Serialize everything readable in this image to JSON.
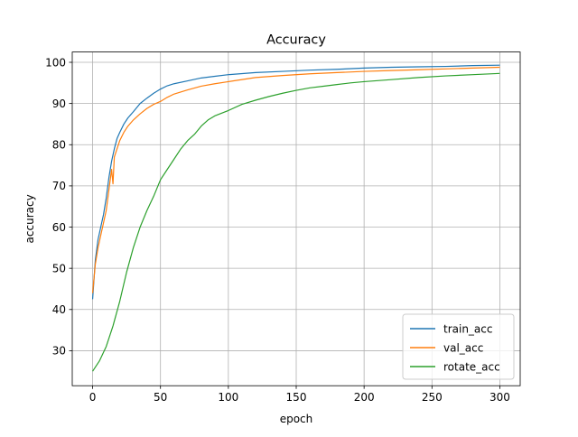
{
  "chart_data": {
    "type": "line",
    "title": "Accuracy",
    "xlabel": "epoch",
    "ylabel": "accuracy",
    "xlim": [
      -15,
      315
    ],
    "ylim": [
      21.5,
      102.5
    ],
    "xticks": [
      0,
      50,
      100,
      150,
      200,
      250,
      300
    ],
    "yticks": [
      30,
      40,
      50,
      60,
      70,
      80,
      90,
      100
    ],
    "grid": true,
    "legend_position": "lower right",
    "series": [
      {
        "name": "train_acc",
        "color": "#1f77b4",
        "points": [
          [
            0,
            42.5
          ],
          [
            2,
            52
          ],
          [
            4,
            57
          ],
          [
            6,
            60
          ],
          [
            8,
            63
          ],
          [
            10,
            67
          ],
          [
            12,
            72
          ],
          [
            14,
            76
          ],
          [
            16,
            79
          ],
          [
            18,
            81.5
          ],
          [
            20,
            83
          ],
          [
            23,
            85
          ],
          [
            26,
            86.5
          ],
          [
            30,
            88
          ],
          [
            35,
            90
          ],
          [
            40,
            91.3
          ],
          [
            45,
            92.5
          ],
          [
            50,
            93.5
          ],
          [
            55,
            94.3
          ],
          [
            60,
            94.8
          ],
          [
            70,
            95.5
          ],
          [
            80,
            96.2
          ],
          [
            90,
            96.6
          ],
          [
            100,
            97
          ],
          [
            120,
            97.5
          ],
          [
            140,
            97.8
          ],
          [
            160,
            98.1
          ],
          [
            180,
            98.3
          ],
          [
            200,
            98.6
          ],
          [
            220,
            98.8
          ],
          [
            240,
            98.9
          ],
          [
            260,
            99
          ],
          [
            280,
            99.2
          ],
          [
            300,
            99.3
          ]
        ]
      },
      {
        "name": "val_acc",
        "color": "#ff7f0e",
        "points": [
          [
            0,
            44
          ],
          [
            2,
            51
          ],
          [
            4,
            55
          ],
          [
            6,
            58
          ],
          [
            8,
            61
          ],
          [
            10,
            64
          ],
          [
            12,
            69
          ],
          [
            14,
            74
          ],
          [
            15,
            70.5
          ],
          [
            16,
            77
          ],
          [
            18,
            79
          ],
          [
            20,
            81
          ],
          [
            23,
            83
          ],
          [
            26,
            84.5
          ],
          [
            30,
            86
          ],
          [
            35,
            87.5
          ],
          [
            40,
            88.8
          ],
          [
            45,
            89.8
          ],
          [
            50,
            90.5
          ],
          [
            55,
            91.5
          ],
          [
            60,
            92.3
          ],
          [
            70,
            93.3
          ],
          [
            80,
            94.2
          ],
          [
            90,
            94.8
          ],
          [
            100,
            95.3
          ],
          [
            120,
            96.3
          ],
          [
            140,
            96.8
          ],
          [
            160,
            97.2
          ],
          [
            180,
            97.5
          ],
          [
            200,
            97.8
          ],
          [
            220,
            98
          ],
          [
            240,
            98.2
          ],
          [
            260,
            98.4
          ],
          [
            280,
            98.6
          ],
          [
            300,
            98.8
          ]
        ]
      },
      {
        "name": "rotate_acc",
        "color": "#2ca02c",
        "points": [
          [
            0,
            25
          ],
          [
            5,
            27.5
          ],
          [
            10,
            31
          ],
          [
            15,
            36
          ],
          [
            20,
            42
          ],
          [
            25,
            49
          ],
          [
            30,
            55
          ],
          [
            35,
            60
          ],
          [
            40,
            64
          ],
          [
            45,
            67.5
          ],
          [
            50,
            71.5
          ],
          [
            55,
            74
          ],
          [
            60,
            76.5
          ],
          [
            65,
            79
          ],
          [
            70,
            81
          ],
          [
            75,
            82.5
          ],
          [
            80,
            84.5
          ],
          [
            85,
            86
          ],
          [
            90,
            87
          ],
          [
            100,
            88.3
          ],
          [
            110,
            89.8
          ],
          [
            120,
            90.8
          ],
          [
            130,
            91.7
          ],
          [
            140,
            92.5
          ],
          [
            150,
            93.2
          ],
          [
            160,
            93.8
          ],
          [
            170,
            94.2
          ],
          [
            180,
            94.6
          ],
          [
            190,
            95
          ],
          [
            200,
            95.3
          ],
          [
            220,
            95.8
          ],
          [
            240,
            96.3
          ],
          [
            260,
            96.7
          ],
          [
            280,
            97
          ],
          [
            300,
            97.3
          ]
        ]
      }
    ]
  }
}
